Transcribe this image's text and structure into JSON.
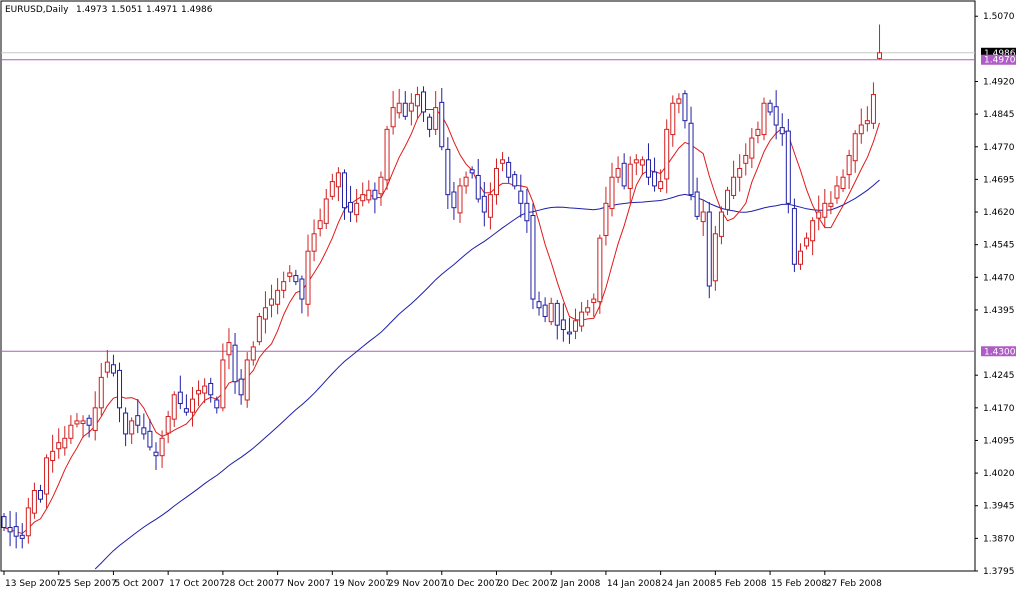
{
  "header": {
    "symbol": "EURUSD,Daily",
    "open": "1.4973",
    "high": "1.5051",
    "low": "1.4971",
    "close": "1.4986"
  },
  "chart_data": {
    "type": "candlestick",
    "title": "EURUSD,Daily",
    "ylim": [
      1.3795,
      1.5105
    ],
    "y_ticks": [
      "1.5070",
      "1.4920",
      "1.4845",
      "1.4770",
      "1.4695",
      "1.4620",
      "1.4545",
      "1.4470",
      "1.4395",
      "1.4245",
      "1.4170",
      "1.4095",
      "1.4020",
      "1.3945",
      "1.3870",
      "1.3795"
    ],
    "x_ticks": [
      "13 Sep 2007",
      "25 Sep 2007",
      "5 Oct 2007",
      "17 Oct 2007",
      "28 Oct 2007",
      "7 Nov 2007",
      "19 Nov 2007",
      "29 Nov 2007",
      "10 Dec 2007",
      "20 Dec 2007",
      "2 Jan 2008",
      "14 Jan 2008",
      "24 Jan 2008",
      "5 Feb 2008",
      "15 Feb 2008",
      "27 Feb 2008"
    ],
    "x_tick_index": [
      0,
      9,
      18,
      27,
      36,
      45,
      54,
      63,
      72,
      81,
      90,
      99,
      108,
      117,
      126,
      135
    ],
    "price_labels": [
      {
        "value": 1.4986,
        "text": "1.4986",
        "color": "#000000"
      },
      {
        "value": 1.497,
        "text": "1.4970",
        "color": "#b05cc6"
      },
      {
        "value": 1.43,
        "text": "1.4300",
        "color": "#b05cc6"
      }
    ],
    "hlines": [
      {
        "value": 1.4986,
        "color": "#c8c8c8"
      },
      {
        "value": 1.497,
        "color": "#b05cc6"
      },
      {
        "value": 1.43,
        "color": "#b05cc6"
      }
    ],
    "colors": {
      "bull": "#d11f1f",
      "bear": "#1f1fa6",
      "ma_fast": "#e01a1a",
      "ma_slow": "#1e1eaa"
    },
    "closes": [
      1.3895,
      1.3885,
      1.3875,
      1.387,
      1.394,
      1.398,
      1.396,
      1.4055,
      1.407,
      1.409,
      1.41,
      1.413,
      1.414,
      1.414,
      1.413,
      1.417,
      1.424,
      1.4275,
      1.425,
      1.417,
      1.411,
      1.414,
      1.413,
      1.411,
      1.408,
      1.406,
      1.41,
      1.415,
      1.42,
      1.418,
      1.416,
      1.419,
      1.421,
      1.422,
      1.42,
      1.417,
      1.428,
      1.432,
      1.423,
      1.42,
      1.428,
      1.431,
      1.438,
      1.44,
      1.442,
      1.444,
      1.446,
      1.448,
      1.446,
      1.442,
      1.453,
      1.457,
      1.46,
      1.465,
      1.469,
      1.471,
      1.463,
      1.462,
      1.464,
      1.466,
      1.467,
      1.465,
      1.47,
      1.481,
      1.486,
      1.487,
      1.484,
      1.487,
      1.489,
      1.485,
      1.481,
      1.486,
      1.477,
      1.466,
      1.463,
      1.468,
      1.47,
      1.471,
      1.465,
      1.462,
      1.466,
      1.472,
      1.474,
      1.47,
      1.468,
      1.464,
      1.46,
      1.442,
      1.44,
      1.438,
      1.441,
      1.436,
      1.435,
      1.434,
      1.437,
      1.439,
      1.44,
      1.442,
      1.456,
      1.464,
      1.47,
      1.472,
      1.468,
      1.473,
      1.474,
      1.474,
      1.47,
      1.468,
      1.469,
      1.481,
      1.487,
      1.488,
      1.483,
      1.466,
      1.461,
      1.462,
      1.445,
      1.457,
      1.462,
      1.467,
      1.47,
      1.472,
      1.475,
      1.479,
      1.481,
      1.487,
      1.485,
      1.482,
      1.48,
      1.464,
      1.45,
      1.453,
      1.456,
      1.46,
      1.462,
      1.464,
      1.464,
      1.468,
      1.47,
      1.475,
      1.48,
      1.482,
      1.483,
      1.489,
      1.4986
    ]
  }
}
